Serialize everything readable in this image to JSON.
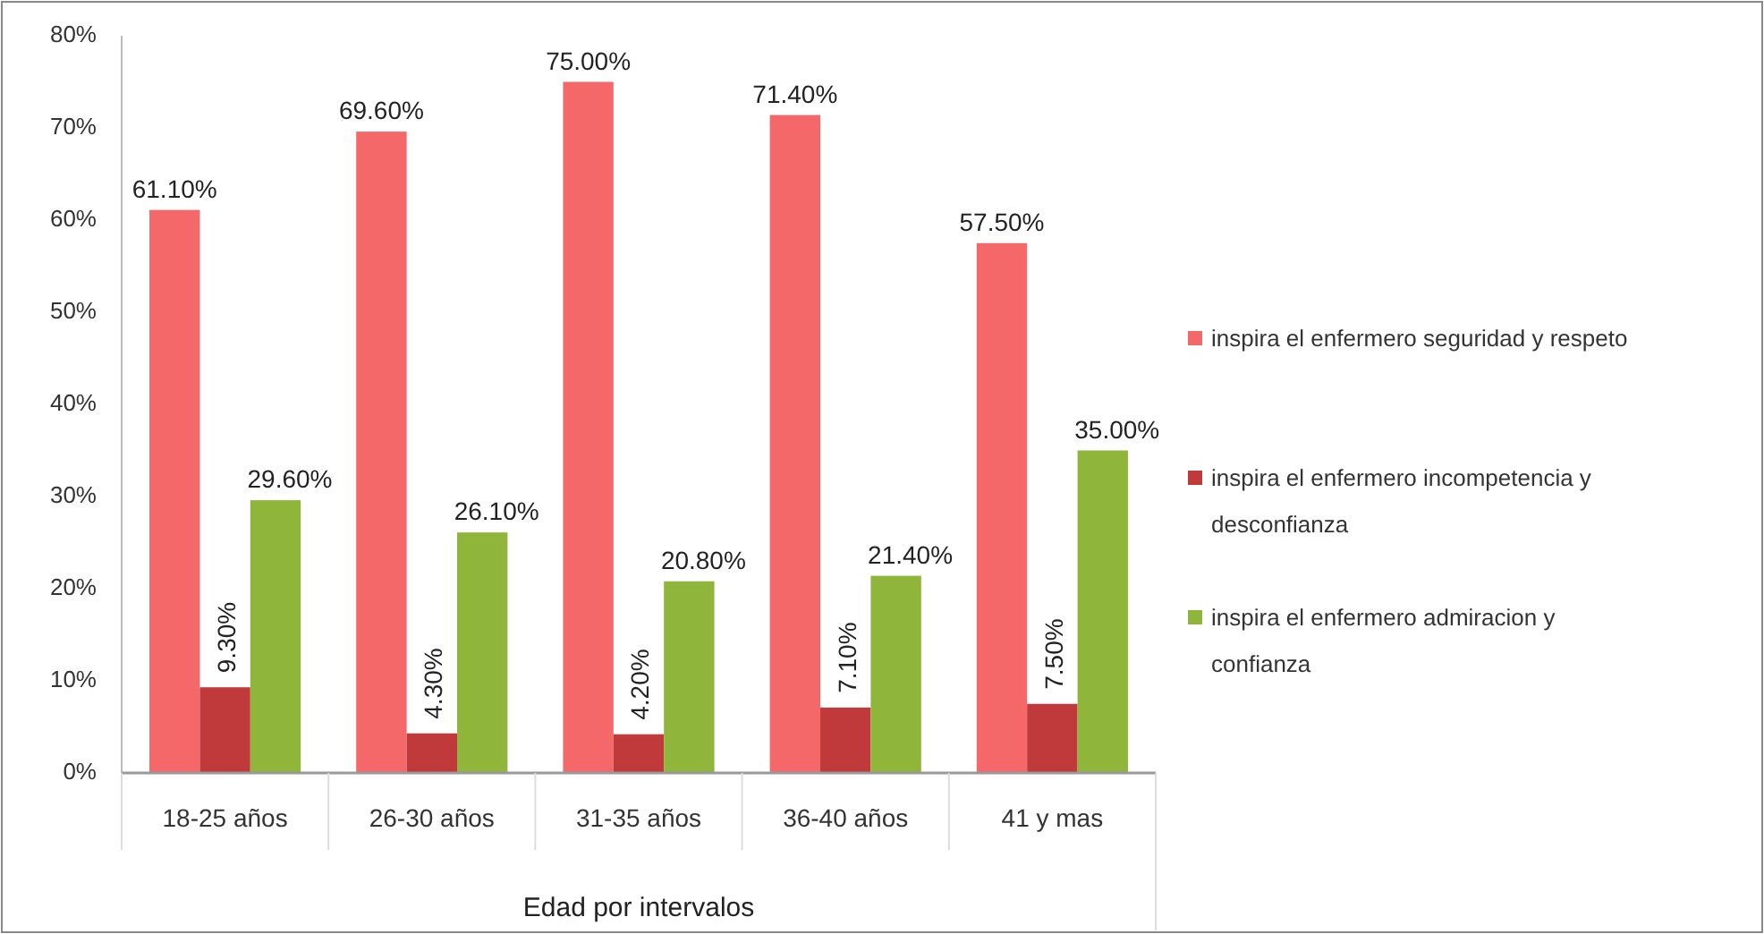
{
  "chart_data": {
    "type": "bar",
    "xlabel": "Edad por intervalos",
    "categories": [
      "18-25 años",
      "26-30 años",
      "31-35 años",
      "36-40  años",
      "41 y mas"
    ],
    "series": [
      {
        "name": "inspira el enfermero seguridad y respeto",
        "color": "#f4686a",
        "values": [
          61.1,
          69.6,
          75.0,
          71.4,
          57.5
        ],
        "value_labels": [
          "61.10%",
          "69.60%",
          "75.00%",
          "71.40%",
          "57.50%"
        ]
      },
      {
        "name": "inspira el enfermero incompetencia y desconfianza",
        "color": "#c0393b",
        "values": [
          9.3,
          4.3,
          4.2,
          7.1,
          7.5
        ],
        "value_labels": [
          "9.30%",
          "4.30%",
          "4.20%",
          "7.10%",
          "7.50%"
        ]
      },
      {
        "name": "inspira el enfermero admiracion y confianza",
        "color": "#8fb53b",
        "values": [
          29.6,
          26.1,
          20.8,
          21.4,
          35.0
        ],
        "value_labels": [
          "29.60%",
          "26.10%",
          "20.80%",
          "21.40%",
          "35.00%"
        ]
      }
    ],
    "ylim": [
      0,
      80
    ],
    "yticks": [
      {
        "value": 0,
        "label": "0%"
      },
      {
        "value": 10,
        "label": "10%"
      },
      {
        "value": 20,
        "label": "20%"
      },
      {
        "value": 30,
        "label": "30%"
      },
      {
        "value": 40,
        "label": "40%"
      },
      {
        "value": 50,
        "label": "50%"
      },
      {
        "value": 60,
        "label": "60%"
      },
      {
        "value": 70,
        "label": "70%"
      },
      {
        "value": 80,
        "label": "80%"
      }
    ],
    "grid": false,
    "legend": "right"
  }
}
